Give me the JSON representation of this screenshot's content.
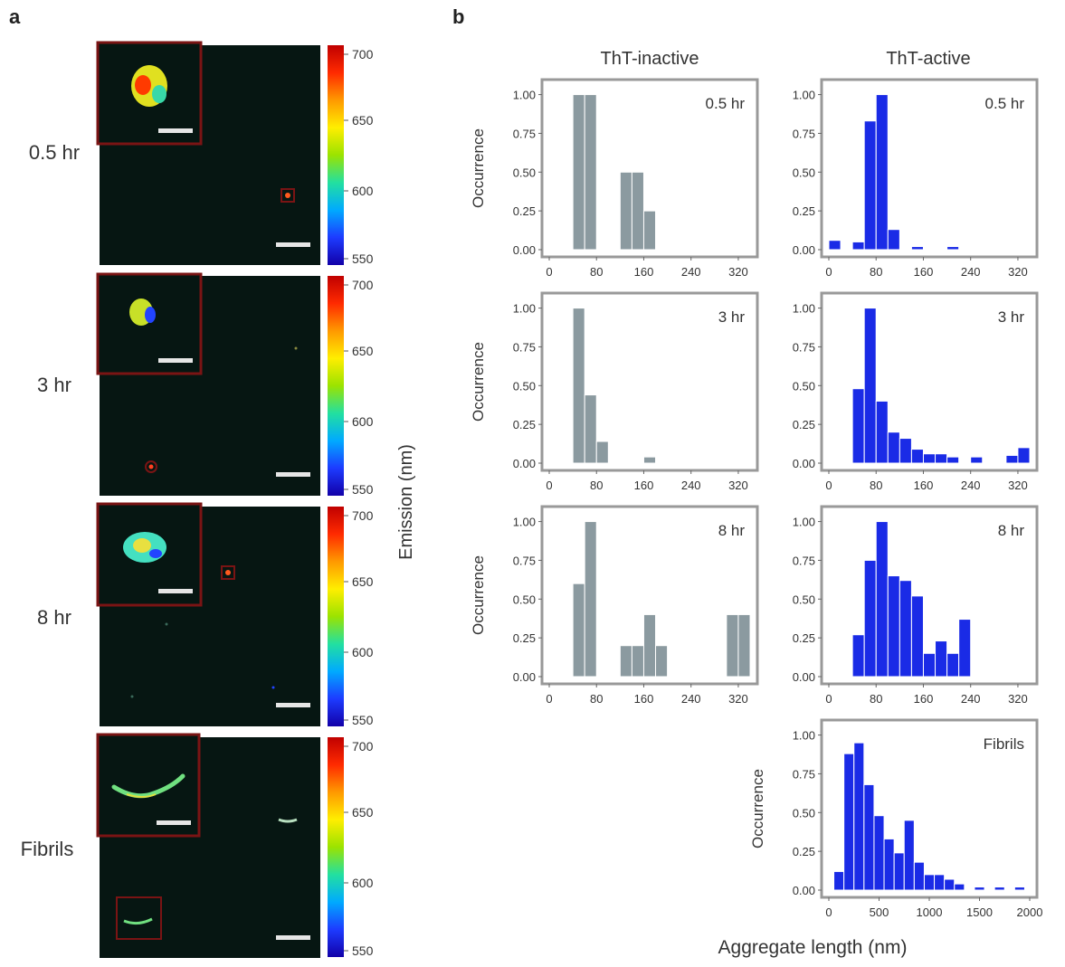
{
  "panel_a": {
    "label": "a",
    "rows": [
      {
        "time_label": "0.5 hr"
      },
      {
        "time_label": "3 hr"
      },
      {
        "time_label": "8 hr"
      },
      {
        "time_label": "Fibrils"
      }
    ],
    "colorbar": {
      "ticks": [
        "700",
        "650",
        "600",
        "550"
      ],
      "label": "Emission (nm)",
      "colors": [
        "#c00000",
        "#ff2a00",
        "#ff9900",
        "#ffee00",
        "#9be300",
        "#22e0a0",
        "#00aaff",
        "#1d3bff",
        "#1200a8"
      ]
    },
    "colors": {
      "image_bg": "#061612",
      "inset_border": "#7a1414",
      "scale_bar": "#e6e6e6"
    }
  },
  "panel_b": {
    "label": "b",
    "column_titles": [
      "ThT-inactive",
      "ThT-active"
    ],
    "xlabel": "Aggregate length (nm)",
    "ylabel": "Occurrence",
    "colors": {
      "inactive": "#8b9aa0",
      "active": "#1a2be6",
      "frame": "#999999"
    }
  },
  "chart_data": [
    {
      "type": "bar",
      "column": "ThT-inactive",
      "title": "0.5 hr",
      "xlim": [
        0,
        340
      ],
      "ylim": [
        0,
        1.05
      ],
      "xticks": [
        "0",
        "80",
        "160",
        "240",
        "320"
      ],
      "yticks": [
        "0.00",
        "0.25",
        "0.50",
        "0.75",
        "1.00"
      ],
      "x": [
        40,
        60,
        120,
        140,
        160
      ],
      "values": [
        1.0,
        1.0,
        0.5,
        0.5,
        0.25
      ],
      "bin_width": 20
    },
    {
      "type": "bar",
      "column": "ThT-active",
      "title": "0.5 hr",
      "xlim": [
        0,
        340
      ],
      "ylim": [
        0,
        1.05
      ],
      "xticks": [
        "0",
        "80",
        "160",
        "240",
        "320"
      ],
      "yticks": [
        "0.00",
        "0.25",
        "0.50",
        "0.75",
        "1.00"
      ],
      "x": [
        0,
        20,
        40,
        60,
        80,
        100,
        120,
        140,
        160,
        180,
        200,
        220,
        240,
        260,
        280,
        300,
        320
      ],
      "values": [
        0.06,
        0.0,
        0.05,
        0.83,
        1.0,
        0.13,
        0.0,
        0.02,
        0.0,
        0.0,
        0.02,
        0.0,
        0.0,
        0.0,
        0.0,
        0.0,
        0.0
      ],
      "bin_width": 20
    },
    {
      "type": "bar",
      "column": "ThT-inactive",
      "title": "3 hr",
      "xlim": [
        0,
        340
      ],
      "ylim": [
        0,
        1.05
      ],
      "xticks": [
        "0",
        "80",
        "160",
        "240",
        "320"
      ],
      "yticks": [
        "0.00",
        "0.25",
        "0.50",
        "0.75",
        "1.00"
      ],
      "x": [
        40,
        60,
        80,
        100,
        120,
        140,
        160,
        180,
        200,
        220,
        240,
        260,
        280,
        300,
        320
      ],
      "values": [
        1.0,
        0.44,
        0.14,
        0.0,
        0.0,
        0.0,
        0.04,
        0.0,
        0.0,
        0.0,
        0.0,
        0.0,
        0.0,
        0.0,
        0.0
      ],
      "bin_width": 20
    },
    {
      "type": "bar",
      "column": "ThT-active",
      "title": "3 hr",
      "xlim": [
        0,
        340
      ],
      "ylim": [
        0,
        1.05
      ],
      "xticks": [
        "0",
        "80",
        "160",
        "240",
        "320"
      ],
      "yticks": [
        "0.00",
        "0.25",
        "0.50",
        "0.75",
        "1.00"
      ],
      "x": [
        40,
        60,
        80,
        100,
        120,
        140,
        160,
        180,
        200,
        220,
        240,
        260,
        280,
        300,
        320
      ],
      "values": [
        0.48,
        1.0,
        0.4,
        0.2,
        0.16,
        0.09,
        0.06,
        0.06,
        0.04,
        0.0,
        0.04,
        0.0,
        0.0,
        0.05,
        0.1
      ],
      "bin_width": 20
    },
    {
      "type": "bar",
      "column": "ThT-inactive",
      "title": "8 hr",
      "xlim": [
        0,
        340
      ],
      "ylim": [
        0,
        1.05
      ],
      "xticks": [
        "0",
        "80",
        "160",
        "240",
        "320"
      ],
      "yticks": [
        "0.00",
        "0.25",
        "0.50",
        "0.75",
        "1.00"
      ],
      "x": [
        40,
        60,
        80,
        100,
        120,
        140,
        160,
        180,
        200,
        220,
        240,
        260,
        280,
        300,
        320
      ],
      "values": [
        0.6,
        1.0,
        0.0,
        0.0,
        0.2,
        0.2,
        0.4,
        0.2,
        0.0,
        0.0,
        0.0,
        0.0,
        0.0,
        0.4,
        0.4
      ],
      "bin_width": 20
    },
    {
      "type": "bar",
      "column": "ThT-active",
      "title": "8 hr",
      "xlim": [
        0,
        340
      ],
      "ylim": [
        0,
        1.05
      ],
      "xticks": [
        "0",
        "80",
        "160",
        "240",
        "320"
      ],
      "yticks": [
        "0.00",
        "0.25",
        "0.50",
        "0.75",
        "1.00"
      ],
      "x": [
        40,
        60,
        80,
        100,
        120,
        140,
        160,
        180,
        200,
        220,
        240,
        260,
        280,
        300,
        320
      ],
      "values": [
        0.27,
        0.75,
        1.0,
        0.65,
        0.62,
        0.52,
        0.15,
        0.23,
        0.15,
        0.37,
        0.0,
        0.0,
        0.0,
        0.0,
        0.0
      ],
      "bin_width": 20
    },
    {
      "type": "bar",
      "column": "ThT-active",
      "title": "Fibrils",
      "xlim": [
        0,
        2000
      ],
      "ylim": [
        0,
        1.05
      ],
      "xticks": [
        "0",
        "500",
        "1000",
        "1500",
        "2000"
      ],
      "yticks": [
        "0.00",
        "0.25",
        "0.50",
        "0.75",
        "1.00"
      ],
      "x": [
        50,
        150,
        250,
        350,
        450,
        550,
        650,
        750,
        850,
        950,
        1050,
        1150,
        1250,
        1350,
        1450,
        1550,
        1650,
        1750,
        1850,
        1950
      ],
      "values": [
        0.12,
        0.88,
        0.95,
        0.68,
        0.48,
        0.33,
        0.24,
        0.45,
        0.18,
        0.1,
        0.1,
        0.07,
        0.04,
        0.0,
        0.02,
        0.0,
        0.02,
        0.0,
        0.02,
        0.0
      ],
      "bin_width": 100
    }
  ]
}
